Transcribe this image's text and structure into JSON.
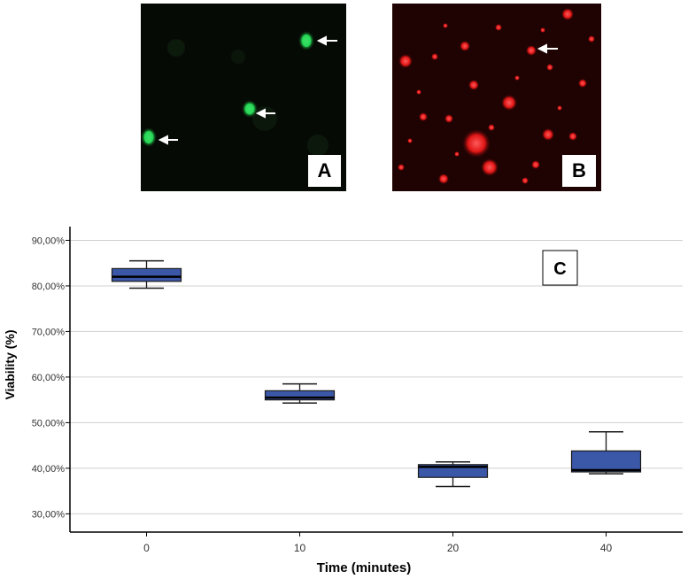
{
  "panels": [
    {
      "label": "A",
      "stain": "green"
    },
    {
      "label": "B",
      "stain": "red"
    }
  ],
  "chart_data": {
    "type": "box",
    "panel_label": "C",
    "xlabel": "Time (minutes)",
    "ylabel": "Viability (%)",
    "ylim": [
      26,
      93
    ],
    "yticks": [
      "30,00%",
      "40,00%",
      "50,00%",
      "60,00%",
      "70,00%",
      "80,00%",
      "90,00%"
    ],
    "ytick_values": [
      30,
      40,
      50,
      60,
      70,
      80,
      90
    ],
    "grid": true,
    "categories": [
      "0",
      "10",
      "20",
      "40"
    ],
    "boxes": [
      {
        "category": "0",
        "min": 79.5,
        "q1": 81.0,
        "median": 82.0,
        "q3": 83.8,
        "max": 85.5
      },
      {
        "category": "10",
        "min": 54.3,
        "q1": 55.0,
        "median": 55.5,
        "q3": 57.0,
        "max": 58.5
      },
      {
        "category": "20",
        "min": 36.0,
        "q1": 38.0,
        "median": 40.3,
        "q3": 40.8,
        "max": 41.4
      },
      {
        "category": "40",
        "min": 38.8,
        "q1": 39.2,
        "median": 39.6,
        "q3": 43.8,
        "max": 48.0
      }
    ],
    "box_color": "#3b57a8",
    "box_edge": "#1a1a1a"
  }
}
